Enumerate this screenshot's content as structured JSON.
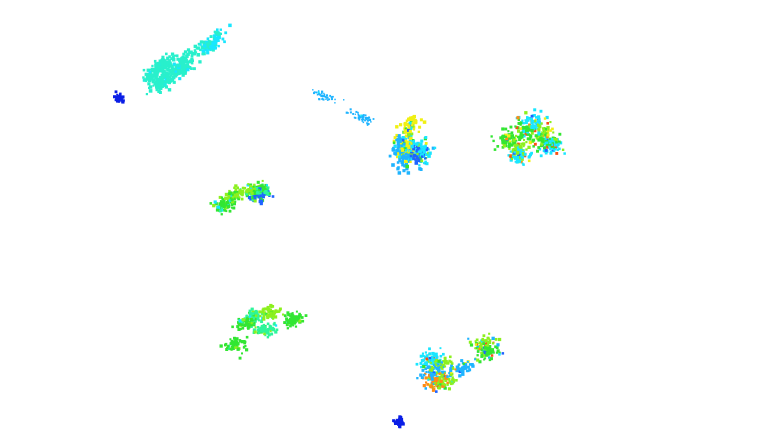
{
  "scene": {
    "background": "#ffffff",
    "kind": "scatter-point-clusters",
    "palette": {
      "deep_blue": "#0a1ee6",
      "blue": "#1e64ff",
      "sky": "#1eb4ff",
      "cyan": "#19e6ff",
      "aqua": "#28f0cc",
      "spring": "#2df59b",
      "green": "#32e632",
      "lime": "#8cf01e",
      "yellow": "#f0f014",
      "orange": "#ff8c14",
      "red_orange": "#fa5014"
    },
    "clusters": [
      {
        "id": "aqua-elongated-cloud",
        "colors": [
          "aqua",
          "cyan"
        ]
      },
      {
        "id": "small-blue-blob-top-left",
        "colors": [
          "deep_blue"
        ]
      },
      {
        "id": "thin-blue-diagonal-streak",
        "colors": [
          "sky",
          "cyan"
        ]
      },
      {
        "id": "center-mixed-cluster",
        "colors": [
          "yellow",
          "lime",
          "green",
          "cyan",
          "sky",
          "blue"
        ]
      },
      {
        "id": "right-mixed-cluster",
        "colors": [
          "red_orange",
          "orange",
          "yellow",
          "lime",
          "green",
          "cyan",
          "blue"
        ]
      },
      {
        "id": "left-green-cluster",
        "colors": [
          "green",
          "lime",
          "spring",
          "cyan",
          "blue"
        ]
      },
      {
        "id": "lower-left-green-cluster",
        "colors": [
          "lime",
          "green",
          "spring",
          "cyan",
          "sky"
        ]
      },
      {
        "id": "lower-mixed-cluster",
        "colors": [
          "cyan",
          "sky",
          "blue",
          "lime",
          "green",
          "yellow",
          "orange",
          "red_orange"
        ]
      },
      {
        "id": "small-blue-blob-bottom",
        "colors": [
          "deep_blue"
        ]
      }
    ]
  }
}
